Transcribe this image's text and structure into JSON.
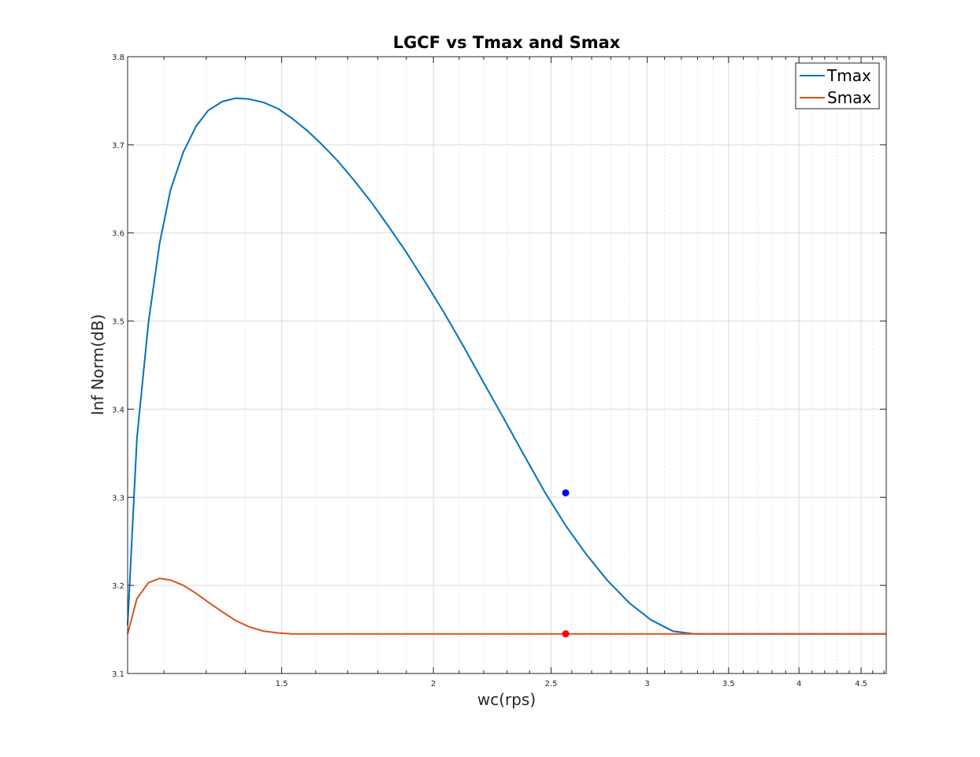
{
  "chart_data": {
    "type": "line",
    "title": "LGCF vs Tmax and Smax",
    "xlabel": "wc(rps)",
    "ylabel": "Inf Norm(dB)",
    "xscale": "log",
    "xlim": [
      1.12,
      4.72
    ],
    "ylim": [
      3.1,
      3.8
    ],
    "xticks": [
      1.5,
      2,
      2.5,
      3,
      3.5,
      4,
      4.5
    ],
    "xtick_labels": [
      "1.5",
      "2",
      "2.5",
      "3",
      "3.5",
      "4",
      "4.5"
    ],
    "yticks": [
      3.1,
      3.2,
      3.3,
      3.4,
      3.5,
      3.6,
      3.7,
      3.8
    ],
    "ytick_labels": [
      "3.1",
      "3.2",
      "3.3",
      "3.4",
      "3.5",
      "3.6",
      "3.7",
      "3.8"
    ],
    "grid": true,
    "minor_grid_x": true,
    "legend_position": "top-right",
    "series": [
      {
        "name": "Tmax",
        "color": "#0072BD",
        "x": [
          1.12,
          1.14,
          1.165,
          1.19,
          1.215,
          1.245,
          1.275,
          1.305,
          1.34,
          1.375,
          1.41,
          1.45,
          1.49,
          1.53,
          1.575,
          1.62,
          1.67,
          1.72,
          1.78,
          1.84,
          1.9,
          1.97,
          2.04,
          2.12,
          2.2,
          2.28,
          2.37,
          2.47,
          2.57,
          2.67,
          2.78,
          2.9,
          3.02,
          3.15,
          3.28,
          3.35,
          3.5,
          3.8,
          4.2,
          4.72
        ],
        "values": [
          3.155,
          3.367,
          3.498,
          3.588,
          3.649,
          3.692,
          3.721,
          3.739,
          3.749,
          3.753,
          3.752,
          3.748,
          3.741,
          3.73,
          3.716,
          3.7,
          3.681,
          3.66,
          3.634,
          3.606,
          3.578,
          3.544,
          3.51,
          3.47,
          3.43,
          3.392,
          3.35,
          3.306,
          3.268,
          3.236,
          3.206,
          3.18,
          3.161,
          3.148,
          3.145,
          3.145,
          3.145,
          3.145,
          3.145,
          3.145
        ]
      },
      {
        "name": "Smax",
        "color": "#D95319",
        "x": [
          1.12,
          1.14,
          1.165,
          1.19,
          1.215,
          1.245,
          1.275,
          1.305,
          1.34,
          1.375,
          1.41,
          1.45,
          1.49,
          1.53,
          1.6,
          1.8,
          2.2,
          2.57,
          3.0,
          3.5,
          4.0,
          4.72
        ],
        "values": [
          3.145,
          3.185,
          3.203,
          3.208,
          3.206,
          3.2,
          3.191,
          3.181,
          3.17,
          3.16,
          3.153,
          3.148,
          3.146,
          3.145,
          3.145,
          3.145,
          3.145,
          3.145,
          3.145,
          3.145,
          3.145,
          3.145
        ]
      }
    ],
    "markers": [
      {
        "x": 2.57,
        "y": 3.305,
        "color": "#0000FF"
      },
      {
        "x": 2.57,
        "y": 3.145,
        "color": "#FF0000"
      }
    ]
  }
}
